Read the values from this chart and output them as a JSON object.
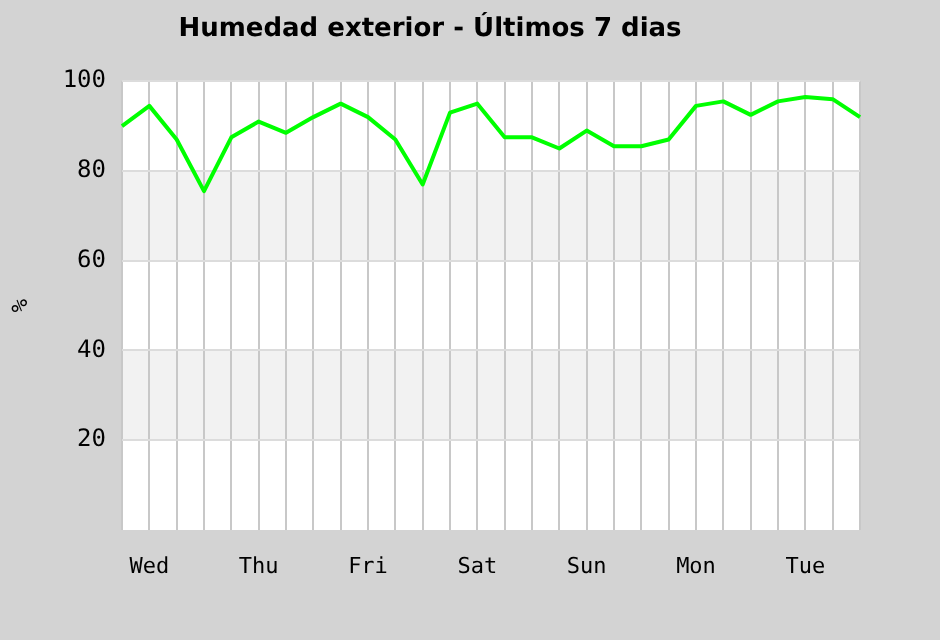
{
  "chart_data": {
    "type": "line",
    "title": "Humedad exterior - Últimos 7 dias",
    "ylabel": "%",
    "categories": [
      null,
      "Wed",
      null,
      null,
      null,
      "Thu",
      null,
      null,
      null,
      "Fri",
      null,
      null,
      null,
      "Sat",
      null,
      null,
      null,
      "Sun",
      null,
      null,
      null,
      "Mon",
      null,
      null,
      null,
      "Tue",
      null,
      null
    ],
    "series": [
      {
        "color": "#00ff00",
        "values": [
          90,
          94.5,
          87,
          75.5,
          87.5,
          91,
          88.5,
          92,
          95,
          92,
          87,
          77,
          93,
          95,
          87.5,
          87.5,
          85,
          89,
          85.5,
          85.5,
          87,
          94.5,
          95.5,
          92.5,
          95.5,
          96.5,
          96,
          92
        ]
      }
    ],
    "ylim": [
      0,
      100
    ],
    "yticks": [
      20,
      40,
      60,
      80,
      100
    ],
    "grid": true,
    "marker": "none",
    "line_style": "solid",
    "legend": false,
    "bands": [
      {
        "axis": "y",
        "from": 20,
        "to": 40,
        "color": "#f2f2f2"
      },
      {
        "axis": "y",
        "from": 60,
        "to": 80,
        "color": "#f2f2f2"
      }
    ]
  }
}
